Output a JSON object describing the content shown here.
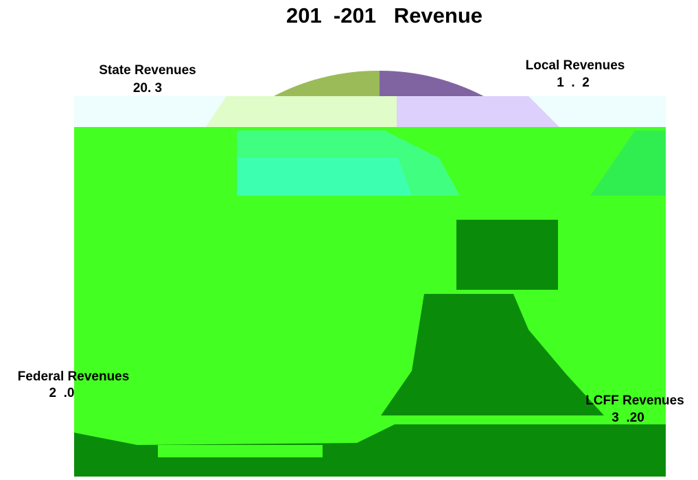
{
  "title": "201  -201   Revenue",
  "labels": [
    {
      "name": "State Revenues",
      "value_text": "20. 3"
    },
    {
      "name": "Local Revenues",
      "value_text": "1  .  2"
    },
    {
      "name": "Federal Revenues",
      "value_text": "2  .0"
    },
    {
      "name": "LCFF Revenues",
      "value_text": "3  .20"
    }
  ]
}
